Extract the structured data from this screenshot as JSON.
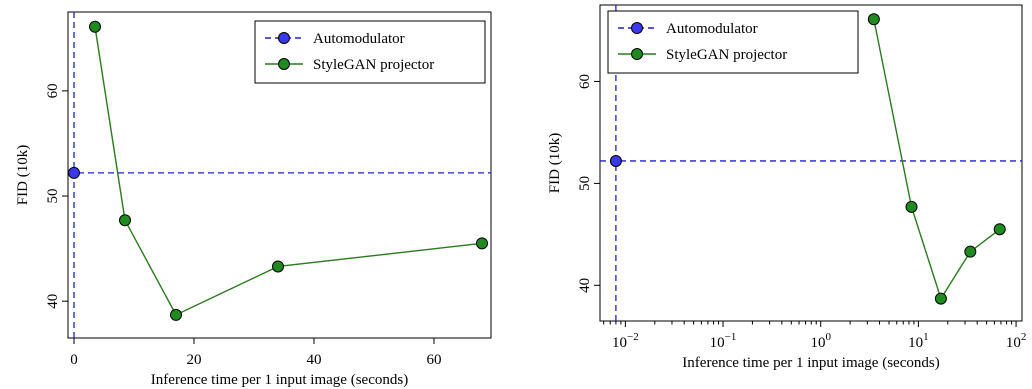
{
  "chart_data": [
    {
      "type": "line",
      "xscale": "linear",
      "xlabel": "Inference time per 1 input image (seconds)",
      "ylabel": "FID (10k)",
      "xlim": [
        -1,
        69.5
      ],
      "ylim": [
        36.5,
        67.5
      ],
      "xticks": [
        0,
        20,
        40,
        60
      ],
      "xtick_labels": [
        "0",
        "20",
        "40",
        "60"
      ],
      "yticks": [
        40,
        50,
        60
      ],
      "ytick_labels": [
        "40",
        "50",
        "60"
      ],
      "legend_position": "top-right",
      "series": [
        {
          "name": "Automodulator",
          "color": "#1f1fd0",
          "marker_color": "#3a3ae8",
          "x": [
            0
          ],
          "y": [
            52.2
          ],
          "hline_y": 52.2,
          "vline_x": 0
        },
        {
          "name": "StyleGAN projector",
          "color": "#2a7a1e",
          "marker_color": "#1f8a1f",
          "x": [
            3.5,
            8.5,
            17,
            34,
            68
          ],
          "y": [
            66.1,
            47.7,
            38.7,
            43.3,
            45.5
          ]
        }
      ]
    },
    {
      "type": "line",
      "xscale": "log",
      "xlabel": "Inference time per 1 input image (seconds)",
      "ylabel": "FID (10k)",
      "xlim": [
        0.0055,
        115
      ],
      "ylim": [
        36.5,
        67.5
      ],
      "xticks": [
        0.01,
        0.1,
        1,
        10,
        100
      ],
      "xtick_labels": [
        {
          "base": "10",
          "exp": "−2"
        },
        {
          "base": "10",
          "exp": "−1"
        },
        {
          "base": "10",
          "exp": "0"
        },
        {
          "base": "10",
          "exp": "1"
        },
        {
          "base": "10",
          "exp": "2"
        }
      ],
      "yticks": [
        40,
        50,
        60
      ],
      "ytick_labels": [
        "40",
        "50",
        "60"
      ],
      "legend_position": "top-left",
      "series": [
        {
          "name": "Automodulator",
          "color": "#1f1fd0",
          "marker_color": "#3a3ae8",
          "x": [
            0.008
          ],
          "y": [
            52.2
          ],
          "hline_y": 52.2,
          "vline_x": 0.008
        },
        {
          "name": "StyleGAN projector",
          "color": "#2a7a1e",
          "marker_color": "#1f8a1f",
          "x": [
            3.5,
            8.5,
            17,
            34,
            68
          ],
          "y": [
            66.1,
            47.7,
            38.7,
            43.3,
            45.5
          ]
        }
      ]
    }
  ]
}
